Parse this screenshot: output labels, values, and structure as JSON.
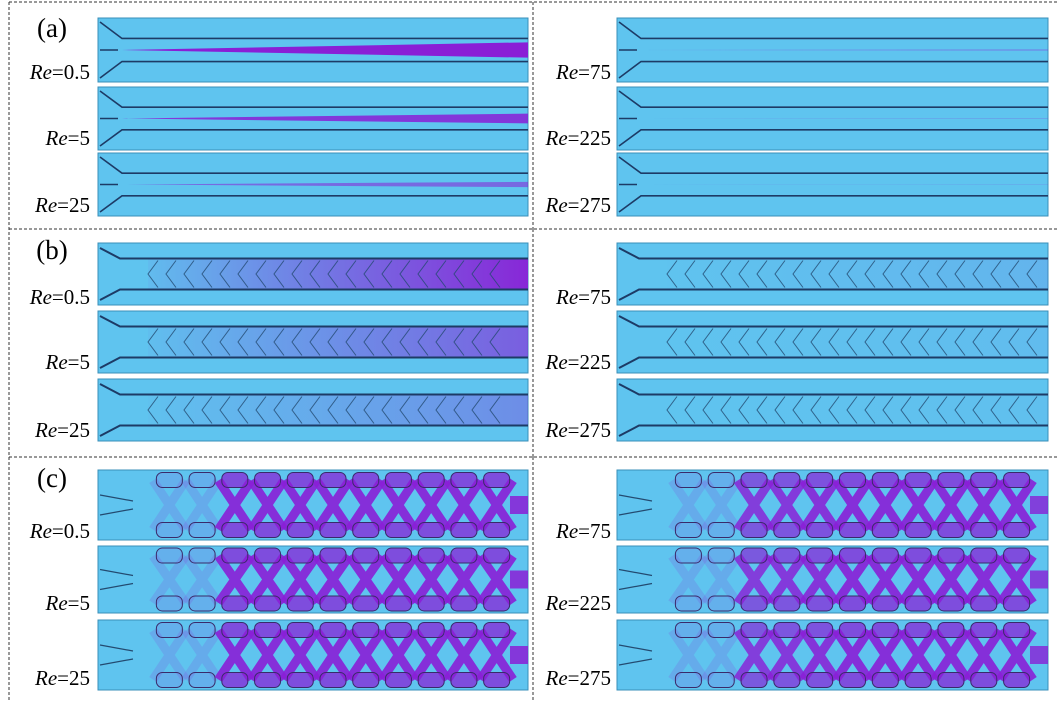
{
  "panels": [
    {
      "label": "(a)",
      "left": [
        {
          "symbol": "Re",
          "rest": "=0.5"
        },
        {
          "symbol": "Re",
          "rest": "=5"
        },
        {
          "symbol": "Re",
          "rest": "=25"
        }
      ],
      "right": [
        {
          "symbol": "Re",
          "rest": "=75"
        },
        {
          "symbol": "Re",
          "rest": "=225"
        },
        {
          "symbol": "Re",
          "rest": "=275"
        }
      ]
    },
    {
      "label": "(b)",
      "left": [
        {
          "symbol": "Re",
          "rest": "=0.5"
        },
        {
          "symbol": "Re",
          "rest": "=5"
        },
        {
          "symbol": "Re",
          "rest": "=25"
        }
      ],
      "right": [
        {
          "symbol": "Re",
          "rest": "=75"
        },
        {
          "symbol": "Re",
          "rest": "=225"
        },
        {
          "symbol": "Re",
          "rest": "=275"
        }
      ]
    },
    {
      "label": "(c)",
      "left": [
        {
          "symbol": "Re",
          "rest": "=0.5"
        },
        {
          "symbol": "Re",
          "rest": "=5"
        },
        {
          "symbol": "Re",
          "rest": "=25"
        }
      ],
      "right": [
        {
          "symbol": "Re",
          "rest": "=75"
        },
        {
          "symbol": "Re",
          "rest": "=225"
        },
        {
          "symbol": "Re",
          "rest": "=275"
        }
      ]
    }
  ]
}
